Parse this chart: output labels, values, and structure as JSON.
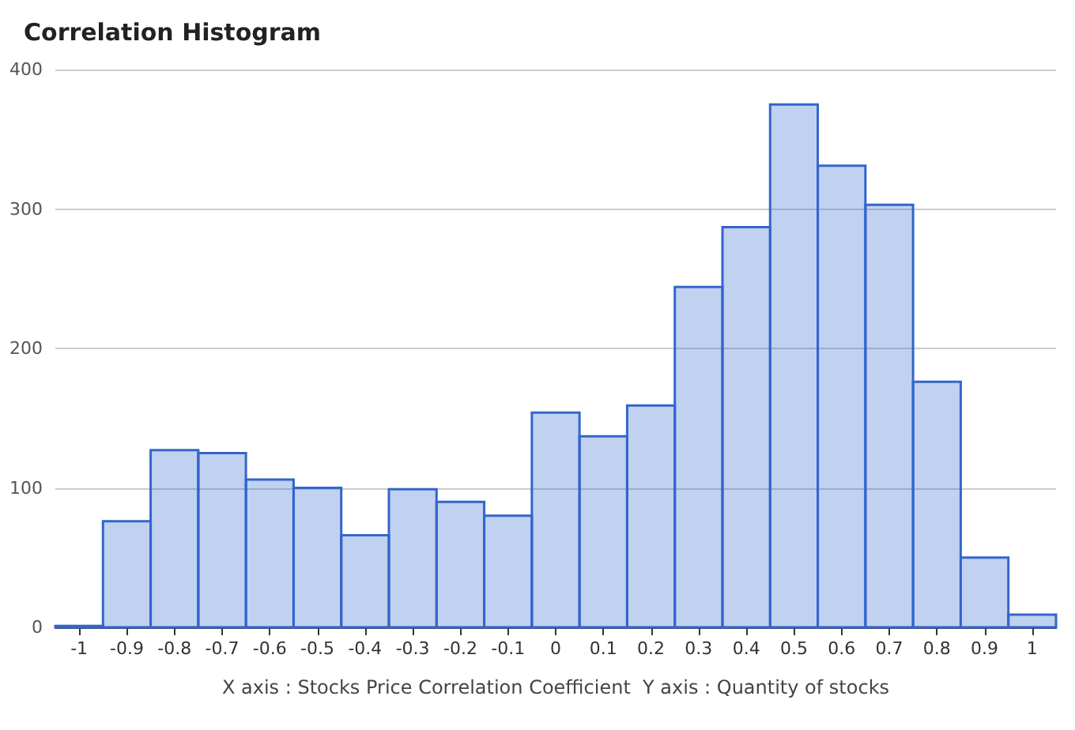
{
  "chart_data": {
    "type": "histogram",
    "title": "Correlation Histogram",
    "xlabel": "X axis : Stocks Price Correlation Coefficient  Y axis : Quantity of stocks",
    "color": "#3366cc",
    "bins": [
      -1.05,
      -0.95,
      -0.85,
      -0.75,
      -0.65,
      -0.55,
      -0.45,
      -0.35,
      -0.25,
      -0.15,
      -0.05,
      0.05,
      0.15,
      0.25,
      0.35,
      0.45,
      0.55,
      0.65,
      0.75,
      0.85,
      0.95,
      1.05
    ],
    "values": [
      1,
      76,
      127,
      125,
      106,
      100,
      66,
      99,
      90,
      80,
      154,
      137,
      159,
      244,
      287,
      375,
      331,
      303,
      176,
      50,
      9
    ],
    "xlim": [
      -1.05,
      1.05
    ],
    "xticks": [
      -1,
      -0.9,
      -0.8,
      -0.7,
      -0.6,
      -0.5,
      -0.4,
      -0.3,
      -0.2,
      -0.1,
      0,
      0.1,
      0.2,
      0.3,
      0.4,
      0.5,
      0.6,
      0.7,
      0.8,
      0.9,
      1
    ],
    "ylim": [
      0,
      400
    ],
    "yticks": [
      0,
      100,
      200,
      300,
      400
    ],
    "grid": "y"
  }
}
